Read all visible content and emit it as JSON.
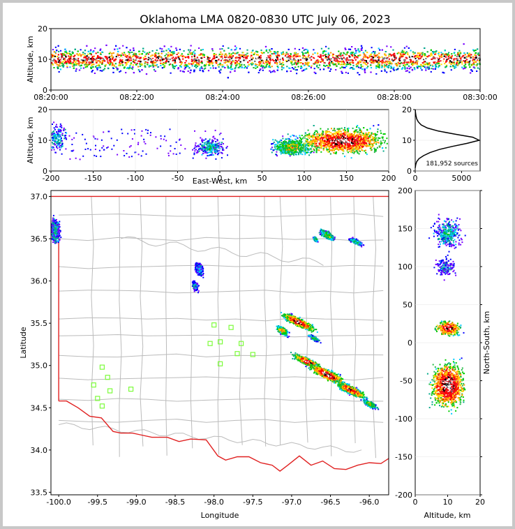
{
  "title": "Oklahoma LMA 0820-0830 UTC July 06, 2023",
  "colors": {
    "state_border": "#e02020",
    "county_lines": "#bbbbbb",
    "stations": "#7cfc3a",
    "frame_bg": "#c8c8c8"
  },
  "chart_data": [
    {
      "panel": "time-height",
      "type": "heatmap",
      "ylabel": "Altitude, km",
      "ylim": [
        0,
        20
      ],
      "yticks": [
        "0",
        "10",
        "20"
      ],
      "xticks": [
        "08:20:00",
        "08:22:00",
        "08:24:00",
        "08:26:00",
        "08:28:00",
        "08:30:00"
      ],
      "xrange": [
        "08:20:00",
        "08:30:00"
      ]
    },
    {
      "panel": "east-west-altitude",
      "type": "heatmap",
      "xlabel": "East-West, km",
      "ylabel": "Altitude, km",
      "xlim": [
        -200,
        200
      ],
      "ylim": [
        0,
        20
      ],
      "xticks": [
        "-200",
        "-150",
        "-100",
        "-50",
        "0",
        "50",
        "100",
        "150",
        "200"
      ],
      "yticks": [
        "0",
        "10",
        "20"
      ],
      "clusters": [
        {
          "x": -195,
          "z": 11,
          "w": 14,
          "h": 7,
          "density": 0.35
        },
        {
          "x": -12,
          "z": 8,
          "w": 15,
          "h": 4,
          "density": 0.4
        },
        {
          "x": 85,
          "z": 8,
          "w": 20,
          "h": 4,
          "density": 0.6
        },
        {
          "x": 145,
          "z": 10,
          "w": 45,
          "h": 6,
          "density": 0.9
        }
      ]
    },
    {
      "panel": "altitude-histogram",
      "type": "line",
      "xlim": [
        0,
        7000
      ],
      "ylim": [
        0,
        20
      ],
      "xticks": [
        "0",
        "5000"
      ],
      "yticks": [
        "0",
        "10",
        "20"
      ],
      "annotation": "181,952 sources",
      "profile": [
        [
          0,
          1
        ],
        [
          50,
          2
        ],
        [
          150,
          3
        ],
        [
          400,
          4
        ],
        [
          900,
          5
        ],
        [
          1600,
          6
        ],
        [
          2600,
          7
        ],
        [
          4000,
          8
        ],
        [
          5600,
          9
        ],
        [
          6900,
          10
        ],
        [
          6200,
          11
        ],
        [
          4300,
          12
        ],
        [
          2500,
          13
        ],
        [
          1300,
          14
        ],
        [
          650,
          15
        ],
        [
          330,
          16
        ],
        [
          160,
          17
        ],
        [
          80,
          18
        ],
        [
          30,
          19
        ],
        [
          10,
          20
        ]
      ]
    },
    {
      "panel": "plan-view",
      "type": "scatter",
      "xlabel": "Longitude",
      "ylabel": "Latitude",
      "xlim": [
        -100.1,
        -95.75
      ],
      "ylim": [
        33.47,
        37.07
      ],
      "xticks": [
        "-100.0",
        "-99.5",
        "-99.0",
        "-98.5",
        "-98.0",
        "-97.5",
        "-97.0",
        "-96.5",
        "-96.0"
      ],
      "yticks": [
        "33.5",
        "34.0",
        "34.5",
        "35.0",
        "35.5",
        "36.0",
        "36.5",
        "37.0"
      ],
      "stations": [
        [
          -98.0,
          35.48
        ],
        [
          -97.78,
          35.45
        ],
        [
          -97.92,
          35.28
        ],
        [
          -98.05,
          35.26
        ],
        [
          -97.65,
          35.26
        ],
        [
          -97.7,
          35.14
        ],
        [
          -97.92,
          35.02
        ],
        [
          -97.5,
          35.13
        ],
        [
          -99.44,
          34.98
        ],
        [
          -99.37,
          34.86
        ],
        [
          -99.55,
          34.77
        ],
        [
          -99.34,
          34.7
        ],
        [
          -99.07,
          34.72
        ],
        [
          -99.5,
          34.61
        ],
        [
          -99.44,
          34.52
        ]
      ],
      "clusters": [
        {
          "lon": -96.92,
          "lat": 35.52,
          "w": 0.28,
          "h": 0.07,
          "density": 0.9
        },
        {
          "lon": -97.13,
          "lat": 35.42,
          "w": 0.1,
          "h": 0.06,
          "density": 0.7
        },
        {
          "lon": -96.72,
          "lat": 35.33,
          "w": 0.1,
          "h": 0.04,
          "density": 0.5
        },
        {
          "lon": -96.8,
          "lat": 35.05,
          "w": 0.25,
          "h": 0.06,
          "density": 0.9
        },
        {
          "lon": -96.55,
          "lat": 34.9,
          "w": 0.3,
          "h": 0.08,
          "density": 0.95
        },
        {
          "lon": -96.25,
          "lat": 34.72,
          "w": 0.25,
          "h": 0.07,
          "density": 0.85
        },
        {
          "lon": -96.0,
          "lat": 34.55,
          "w": 0.12,
          "h": 0.05,
          "density": 0.6
        },
        {
          "lon": -96.55,
          "lat": 36.55,
          "w": 0.12,
          "h": 0.06,
          "density": 0.6
        },
        {
          "lon": -96.7,
          "lat": 36.5,
          "w": 0.04,
          "h": 0.04,
          "density": 0.5
        },
        {
          "lon": -96.18,
          "lat": 36.47,
          "w": 0.12,
          "h": 0.04,
          "density": 0.5
        },
        {
          "lon": -100.05,
          "lat": 36.6,
          "w": 0.08,
          "h": 0.2,
          "density": 0.4
        },
        {
          "lon": -98.2,
          "lat": 36.15,
          "w": 0.08,
          "h": 0.1,
          "density": 0.35
        },
        {
          "lon": -98.25,
          "lat": 35.95,
          "w": 0.05,
          "h": 0.08,
          "density": 0.35
        }
      ]
    },
    {
      "panel": "altitude-north-south",
      "type": "heatmap",
      "xlabel": "Altitude, km",
      "ylabel": "North-South, km",
      "xlim": [
        0,
        20
      ],
      "ylim": [
        -200,
        200
      ],
      "xticks": [
        "0",
        "10",
        "20"
      ],
      "yticks": [
        "-200",
        "-150",
        "-100",
        "-50",
        "0",
        "50",
        "100",
        "150",
        "200"
      ],
      "clusters": [
        {
          "z": 10,
          "y": 20,
          "w": 6,
          "h": 12,
          "density": 0.9
        },
        {
          "z": 10,
          "y": -55,
          "w": 8,
          "h": 35,
          "density": 0.95
        },
        {
          "z": 10,
          "y": 145,
          "w": 7,
          "h": 25,
          "density": 0.4
        },
        {
          "z": 9,
          "y": 100,
          "w": 5,
          "h": 15,
          "density": 0.3
        }
      ]
    }
  ]
}
